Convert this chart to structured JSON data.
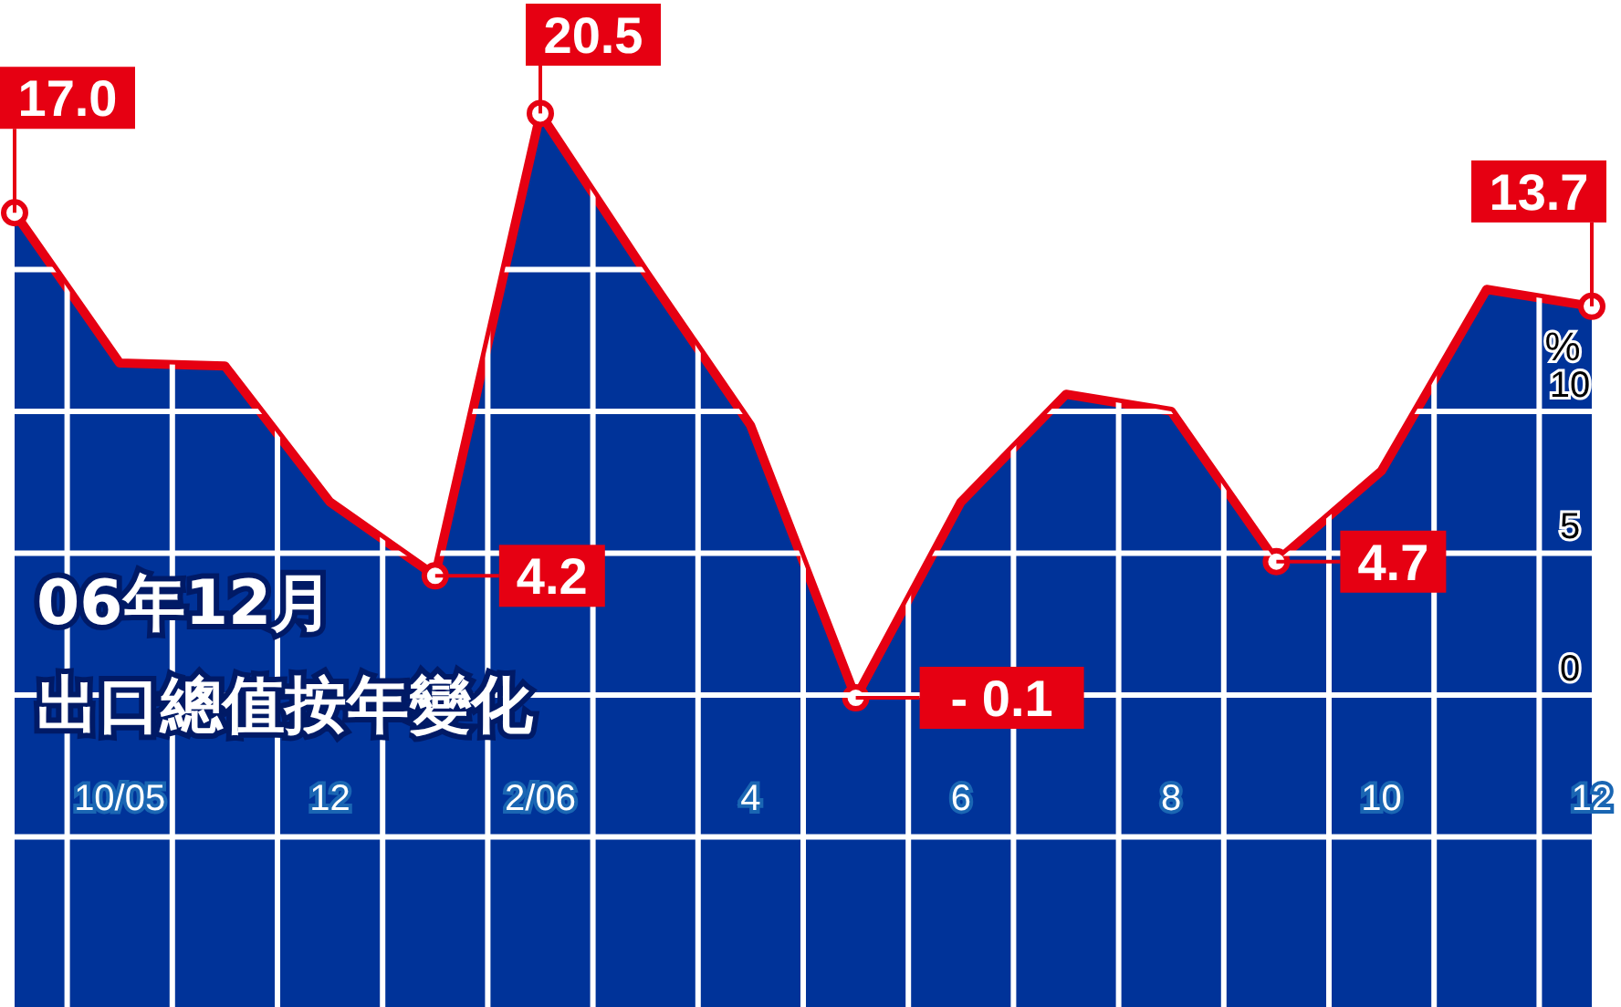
{
  "chart_data": {
    "type": "area",
    "title": "06年12月",
    "subtitle": "出口總值按年變化",
    "ylabel": "%",
    "categories": [
      null,
      "10/05",
      null,
      "12",
      null,
      "2/06",
      null,
      "4",
      null,
      "6",
      null,
      "8",
      null,
      "10",
      null,
      "12"
    ],
    "series": [
      {
        "color": "#003399",
        "values": [
          17.0,
          11.7,
          11.6,
          6.8,
          4.2,
          20.5,
          14.9,
          9.5,
          -0.1,
          6.8,
          10.6,
          10.0,
          4.7,
          7.9,
          14.3,
          13.7
        ],
        "value_labels": [
          "17.0",
          null,
          null,
          null,
          "4.2",
          "20.5",
          null,
          null,
          "- 0.1",
          null,
          null,
          null,
          "4.7",
          null,
          null,
          "13.7"
        ]
      }
    ],
    "ylim": [
      -11,
      24.5
    ],
    "yticks": [
      {
        "value": -5,
        "label": null
      },
      0,
      5,
      10,
      {
        "value": 15,
        "label": null
      }
    ],
    "grid": true
  }
}
